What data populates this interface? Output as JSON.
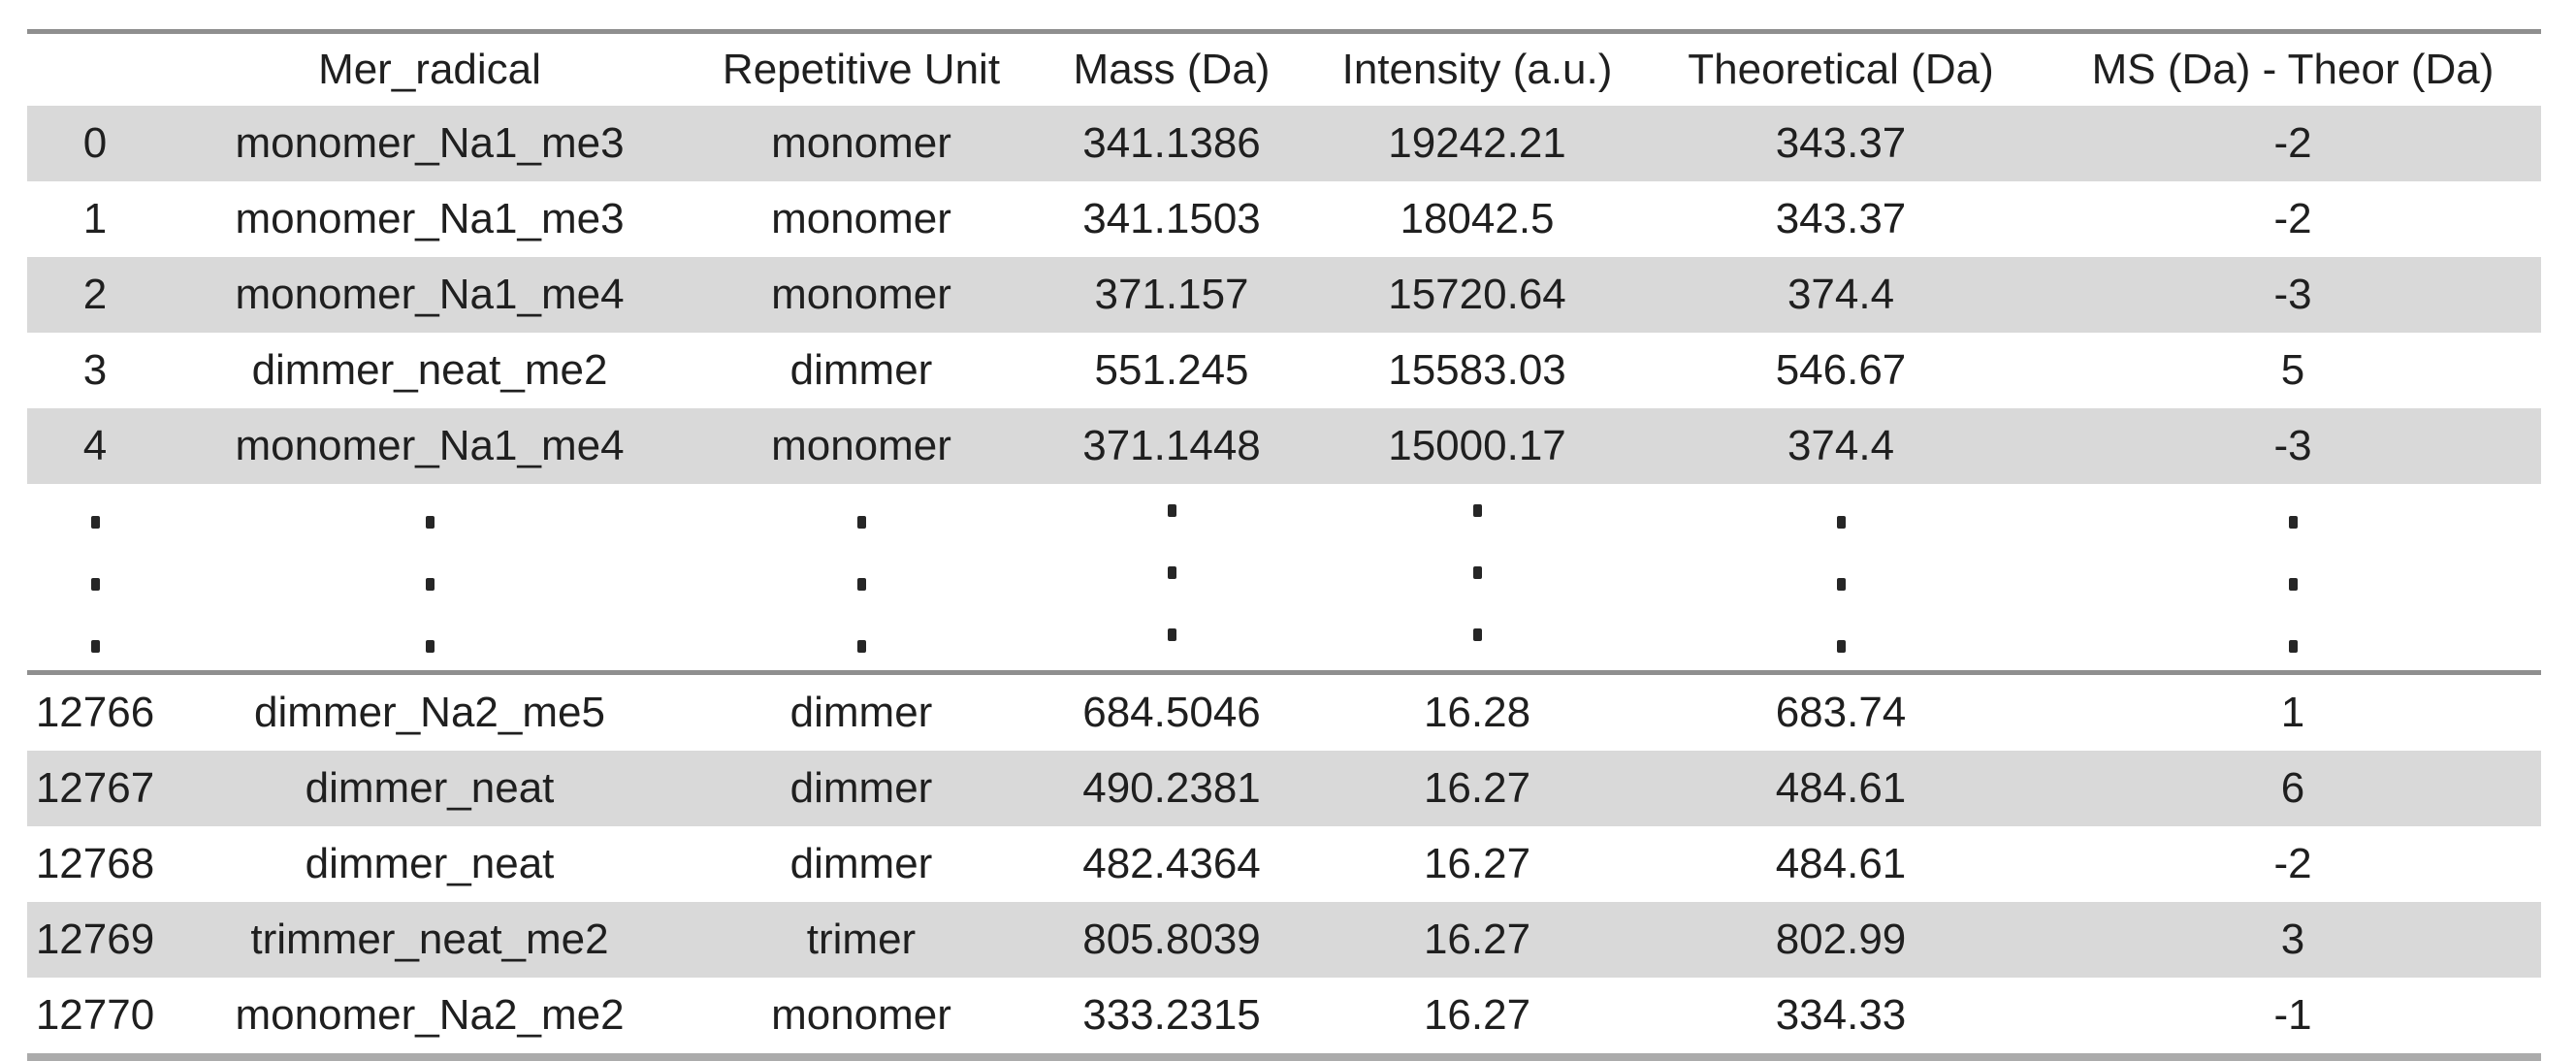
{
  "style": {
    "stripe_color": "#d9d9d9",
    "rule_dark_color": "#8f8f8f",
    "rule_light_color": "#ababab",
    "text_color": "#1f1f1f",
    "dot_color": "#262626"
  },
  "ellipsis": {
    "rows": 3,
    "symbol": "."
  },
  "chart_data": {
    "type": "table",
    "title": "",
    "columns": [
      "",
      "Mer_radical",
      "Repetitive Unit",
      "Mass (Da)",
      "Intensity (a.u.)",
      "Theoretical (Da)",
      "MS (Da) - Theor (Da)"
    ],
    "rows_top": [
      [
        "0",
        "monomer_Na1_me3",
        "monomer",
        "341.1386",
        "19242.21",
        "343.37",
        "-2"
      ],
      [
        "1",
        "monomer_Na1_me3",
        "monomer",
        "341.1503",
        "18042.5",
        "343.37",
        "-2"
      ],
      [
        "2",
        "monomer_Na1_me4",
        "monomer",
        "371.157",
        "15720.64",
        "374.4",
        "-3"
      ],
      [
        "3",
        "dimmer_neat_me2",
        "dimmer",
        "551.245",
        "15583.03",
        "546.67",
        "5"
      ],
      [
        "4",
        "monomer_Na1_me4",
        "monomer",
        "371.1448",
        "15000.17",
        "374.4",
        "-3"
      ]
    ],
    "rows_bottom": [
      [
        "12766",
        "dimmer_Na2_me5",
        "dimmer",
        "684.5046",
        "16.28",
        "683.74",
        "1"
      ],
      [
        "12767",
        "dimmer_neat",
        "dimmer",
        "490.2381",
        "16.27",
        "484.61",
        "6"
      ],
      [
        "12768",
        "dimmer_neat",
        "dimmer",
        "482.4364",
        "16.27",
        "484.61",
        "-2"
      ],
      [
        "12769",
        "trimmer_neat_me2",
        "trimer",
        "805.8039",
        "16.27",
        "802.99",
        "3"
      ],
      [
        "12770",
        "monomer_Na2_me2",
        "monomer",
        "333.2315",
        "16.27",
        "334.33",
        "-1"
      ]
    ],
    "layout": {
      "ellipsis_between_sections": true,
      "striped_rows": true,
      "grid": false
    }
  }
}
